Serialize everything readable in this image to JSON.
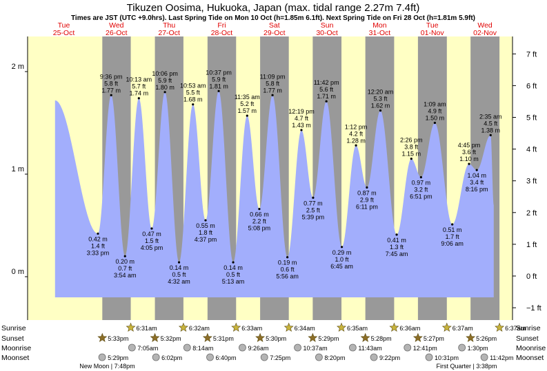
{
  "chart_data": {
    "type": "area",
    "title": "Tikuzen Oosima, Hukuoka, Japan (max. tidal range 2.27m 7.4ft)",
    "subtitle": "Times are JST (UTC +9.0hrs). Last Spring Tide on Mon 10 Oct (h=1.85m 6.1ft). Next Spring Tide on Fri 28 Oct (h=1.81m 5.9ft)",
    "x_unit": "hours since Tue 25-Oct 00:00",
    "x_range": [
      -4,
      196
    ],
    "ylim_m": [
      -0.3,
      2.3
    ],
    "ylim_ft": [
      -1,
      7.5
    ],
    "y_ticks_m": [
      {
        "value": 0,
        "label": "0 m"
      },
      {
        "value": 1,
        "label": "1 m"
      },
      {
        "value": 2,
        "label": "2 m"
      }
    ],
    "y_ticks_ft": [
      {
        "value": -1,
        "label": "−1 ft"
      },
      {
        "value": 0,
        "label": "0 ft"
      },
      {
        "value": 1,
        "label": "1 ft"
      },
      {
        "value": 2,
        "label": "2 ft"
      },
      {
        "value": 3,
        "label": "3 ft"
      },
      {
        "value": 4,
        "label": "4 ft"
      },
      {
        "value": 5,
        "label": "5 ft"
      },
      {
        "value": 6,
        "label": "6 ft"
      },
      {
        "value": 7,
        "label": "7 ft"
      }
    ],
    "days": [
      {
        "dow": "Tue",
        "date": "25-Oct"
      },
      {
        "dow": "Wed",
        "date": "26-Oct"
      },
      {
        "dow": "Thu",
        "date": "27-Oct"
      },
      {
        "dow": "Fri",
        "date": "28-Oct"
      },
      {
        "dow": "Sat",
        "date": "29-Oct"
      },
      {
        "dow": "Sun",
        "date": "30-Oct"
      },
      {
        "dow": "Mon",
        "date": "31-Oct"
      },
      {
        "dow": "Tue",
        "date": "01-Nov"
      },
      {
        "dow": "Wed",
        "date": "02-Nov"
      }
    ],
    "start_level_m": 1.72,
    "end_level_m": 0.7,
    "tides": [
      {
        "t": 15.55,
        "m": 0.42,
        "m_label": "0.42 m",
        "ft": "1.4 ft",
        "time": "3:33 pm",
        "type": "low"
      },
      {
        "t": 21.6,
        "m": 1.77,
        "m_label": "1.77 m",
        "ft": "5.8 ft",
        "time": "9:36 pm",
        "type": "high"
      },
      {
        "t": 27.9,
        "m": 0.2,
        "m_label": "0.20 m",
        "ft": "0.7 ft",
        "time": "3:54 am",
        "type": "low"
      },
      {
        "t": 34.22,
        "m": 1.74,
        "m_label": "1.74 m",
        "ft": "5.7 ft",
        "time": "10:13 am",
        "type": "high"
      },
      {
        "t": 40.08,
        "m": 0.47,
        "m_label": "0.47 m",
        "ft": "1.5 ft",
        "time": "4:05 pm",
        "type": "low"
      },
      {
        "t": 46.1,
        "m": 1.8,
        "m_label": "1.80 m",
        "ft": "5.9 ft",
        "time": "10:06 pm",
        "type": "high"
      },
      {
        "t": 52.53,
        "m": 0.14,
        "m_label": "0.14 m",
        "ft": "0.5 ft",
        "time": "4:32 am",
        "type": "low"
      },
      {
        "t": 58.88,
        "m": 1.68,
        "m_label": "1.68 m",
        "ft": "5.5 ft",
        "time": "10:53 am",
        "type": "high"
      },
      {
        "t": 64.62,
        "m": 0.55,
        "m_label": "0.55 m",
        "ft": "1.8 ft",
        "time": "4:37 pm",
        "type": "low"
      },
      {
        "t": 70.62,
        "m": 1.81,
        "m_label": "1.81 m",
        "ft": "5.9 ft",
        "time": "10:37 pm",
        "type": "high"
      },
      {
        "t": 77.22,
        "m": 0.14,
        "m_label": "0.14 m",
        "ft": "0.5 ft",
        "time": "5:13 am",
        "type": "low"
      },
      {
        "t": 83.58,
        "m": 1.57,
        "m_label": "1.57 m",
        "ft": "5.2 ft",
        "time": "11:35 am",
        "type": "high"
      },
      {
        "t": 89.13,
        "m": 0.66,
        "m_label": "0.66 m",
        "ft": "2.2 ft",
        "time": "5:08 pm",
        "type": "low"
      },
      {
        "t": 95.15,
        "m": 1.77,
        "m_label": "1.77 m",
        "ft": "5.8 ft",
        "time": "11:09 pm",
        "type": "high"
      },
      {
        "t": 101.93,
        "m": 0.19,
        "m_label": "0.19 m",
        "ft": "0.6 ft",
        "time": "5:56 am",
        "type": "low"
      },
      {
        "t": 108.32,
        "m": 1.43,
        "m_label": "1.43 m",
        "ft": "4.7 ft",
        "time": "12:19 pm",
        "type": "high"
      },
      {
        "t": 113.65,
        "m": 0.77,
        "m_label": "0.77 m",
        "ft": "2.5 ft",
        "time": "5:39 pm",
        "type": "low"
      },
      {
        "t": 119.7,
        "m": 1.71,
        "m_label": "1.71 m",
        "ft": "5.6 ft",
        "time": "11:42 pm",
        "type": "high"
      },
      {
        "t": 126.75,
        "m": 0.29,
        "m_label": "0.29 m",
        "ft": "1.0 ft",
        "time": "6:45 am",
        "type": "low"
      },
      {
        "t": 133.2,
        "m": 1.28,
        "m_label": "1.28 m",
        "ft": "4.2 ft",
        "time": "1:12 pm",
        "type": "high"
      },
      {
        "t": 138.18,
        "m": 0.87,
        "m_label": "0.87 m",
        "ft": "2.9 ft",
        "time": "6:11 pm",
        "type": "low"
      },
      {
        "t": 144.33,
        "m": 1.62,
        "m_label": "1.62 m",
        "ft": "5.3 ft",
        "time": "12:20 am",
        "type": "high"
      },
      {
        "t": 151.75,
        "m": 0.41,
        "m_label": "0.41 m",
        "ft": "1.3 ft",
        "time": "7:45 am",
        "type": "low"
      },
      {
        "t": 158.43,
        "m": 1.15,
        "m_label": "1.15 m",
        "ft": "3.8 ft",
        "time": "2:26 pm",
        "type": "high"
      },
      {
        "t": 162.85,
        "m": 0.97,
        "m_label": "0.97 m",
        "ft": "3.2 ft",
        "time": "6:51 pm",
        "type": "low"
      },
      {
        "t": 169.15,
        "m": 1.5,
        "m_label": "1.50 m",
        "ft": "4.9 ft",
        "time": "1:09 am",
        "type": "high"
      },
      {
        "t": 177.1,
        "m": 0.51,
        "m_label": "0.51 m",
        "ft": "1.7 ft",
        "time": "9:06 am",
        "type": "low"
      },
      {
        "t": 184.75,
        "m": 1.1,
        "m_label": "1.10 m",
        "ft": "3.6 ft",
        "time": "4:45 pm",
        "type": "high"
      },
      {
        "t": 188.27,
        "m": 1.04,
        "m_label": "1.04 m",
        "ft": "3.4 ft",
        "time": "8:16 pm",
        "type": "low"
      },
      {
        "t": 194.58,
        "m": 1.38,
        "m_label": "1.38 m",
        "ft": "4.5 ft",
        "time": "2:35 am",
        "type": "high"
      }
    ],
    "astro": {
      "sunrise": [
        {
          "t": 30.52,
          "label": "6:31am"
        },
        {
          "t": 54.53,
          "label": "6:32am"
        },
        {
          "t": 78.55,
          "label": "6:33am"
        },
        {
          "t": 102.57,
          "label": "6:34am"
        },
        {
          "t": 126.58,
          "label": "6:35am"
        },
        {
          "t": 150.6,
          "label": "6:36am"
        },
        {
          "t": 174.62,
          "label": "6:37am"
        },
        {
          "t": 198.62,
          "label": "6:37am"
        }
      ],
      "sunset": [
        {
          "t": 17.55,
          "label": "5:33pm"
        },
        {
          "t": 41.53,
          "label": "5:32pm"
        },
        {
          "t": 65.52,
          "label": "5:31pm"
        },
        {
          "t": 89.5,
          "label": "5:30pm"
        },
        {
          "t": 113.48,
          "label": "5:29pm"
        },
        {
          "t": 137.47,
          "label": "5:28pm"
        },
        {
          "t": 161.45,
          "label": "5:27pm"
        },
        {
          "t": 185.43,
          "label": "5:26pm"
        }
      ],
      "moonrise": [
        {
          "t": 31.08,
          "label": "7:05am"
        },
        {
          "t": 56.23,
          "label": "8:14am"
        },
        {
          "t": 81.43,
          "label": "9:26am"
        },
        {
          "t": 106.62,
          "label": "10:37am"
        },
        {
          "t": 131.72,
          "label": "11:43am"
        },
        {
          "t": 156.68,
          "label": "12:41pm"
        },
        {
          "t": 181.5,
          "label": "1:30pm"
        }
      ],
      "moonset": [
        {
          "t": 17.48,
          "label": "5:29pm"
        },
        {
          "t": 42.03,
          "label": "6:02pm"
        },
        {
          "t": 66.67,
          "label": "6:40pm"
        },
        {
          "t": 91.42,
          "label": "7:25pm"
        },
        {
          "t": 116.33,
          "label": "8:20pm"
        },
        {
          "t": 141.37,
          "label": "9:22pm"
        },
        {
          "t": 166.52,
          "label": "10:31pm"
        },
        {
          "t": 191.7,
          "label": "11:42pm"
        }
      ],
      "row_labels": [
        "Sunrise",
        "Sunset",
        "Moonrise",
        "Moonset"
      ],
      "phases": [
        {
          "t": 19.8,
          "label": "New Moon | 7:48pm"
        },
        {
          "t": 183.63,
          "label": "First Quarter | 3:38pm"
        }
      ]
    }
  },
  "colors": {
    "day": "#ffffc4",
    "night": "#999999",
    "water": "#a2aefc",
    "outer": "#969696",
    "day_label": "#e00000",
    "sun_icon": "#c8b43c",
    "sunset_icon": "#8c6e28",
    "moon_icon": "#b4b4b4"
  }
}
